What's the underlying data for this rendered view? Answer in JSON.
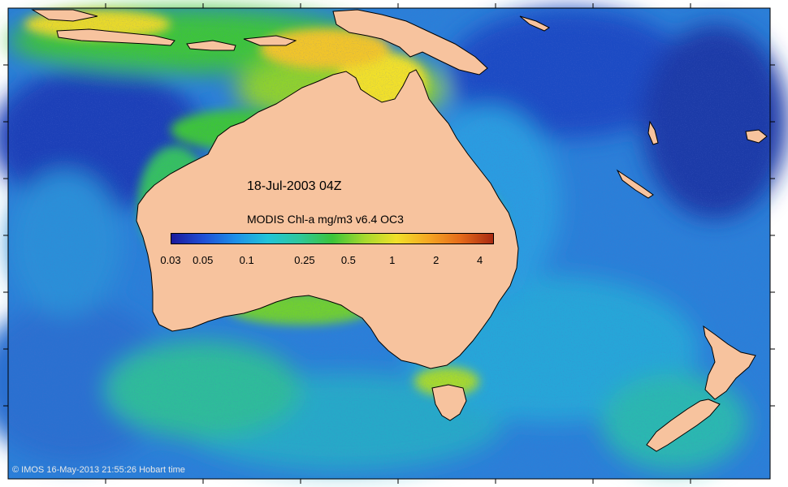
{
  "map": {
    "title": "18-Jul-2003 04Z",
    "colorbar": {
      "title": "MODIS Chl-a mg/m3 v6.4 OC3",
      "ticks": [
        "0.03",
        "0.05",
        "0.1",
        "0.25",
        "0.5",
        "1",
        "2",
        "4"
      ],
      "tick_values": [
        0.03,
        0.05,
        0.1,
        0.25,
        0.5,
        1,
        2,
        4
      ],
      "range": [
        0.03,
        5.0
      ],
      "scale": "log",
      "colors": [
        "#1a1a9c",
        "#1f4fd6",
        "#1e90e8",
        "#22c4d8",
        "#2fc79a",
        "#3cc43a",
        "#a6d92e",
        "#f1e02a",
        "#f5a623",
        "#e56a1b",
        "#a82a12"
      ]
    },
    "credit": "© IMOS 16-May-2013 21:55:26 Hobart time",
    "colors": {
      "land": "#f7c39e",
      "ocean": "#2a7fd8",
      "deep_ocean": "#1c3fb8",
      "coastal_green": "#3cc43a",
      "high_chl": "#f1c52a"
    }
  }
}
